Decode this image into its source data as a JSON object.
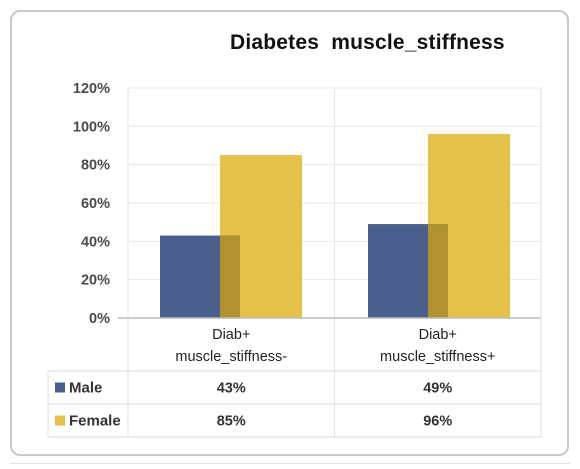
{
  "chart_data": {
    "type": "bar",
    "title": "Diabetes  muscle_stiffness",
    "categories": [
      [
        "Diab+",
        "muscle_stiffness-"
      ],
      [
        "Diab+",
        "muscle_stiffness+"
      ]
    ],
    "series": [
      {
        "name": "Male",
        "values": [
          43,
          49
        ],
        "labels": [
          "43%",
          "49%"
        ],
        "color": "#4a5f8e"
      },
      {
        "name": "Female",
        "values": [
          85,
          96
        ],
        "labels": [
          "85%",
          "96%"
        ],
        "color": "#e6c14a"
      }
    ],
    "overlap_color": "#b09230",
    "yticks": [
      "0%",
      "20%",
      "40%",
      "60%",
      "80%",
      "100%",
      "120%"
    ],
    "ylim": [
      0,
      120
    ],
    "grid": true,
    "legend": "data-table"
  }
}
